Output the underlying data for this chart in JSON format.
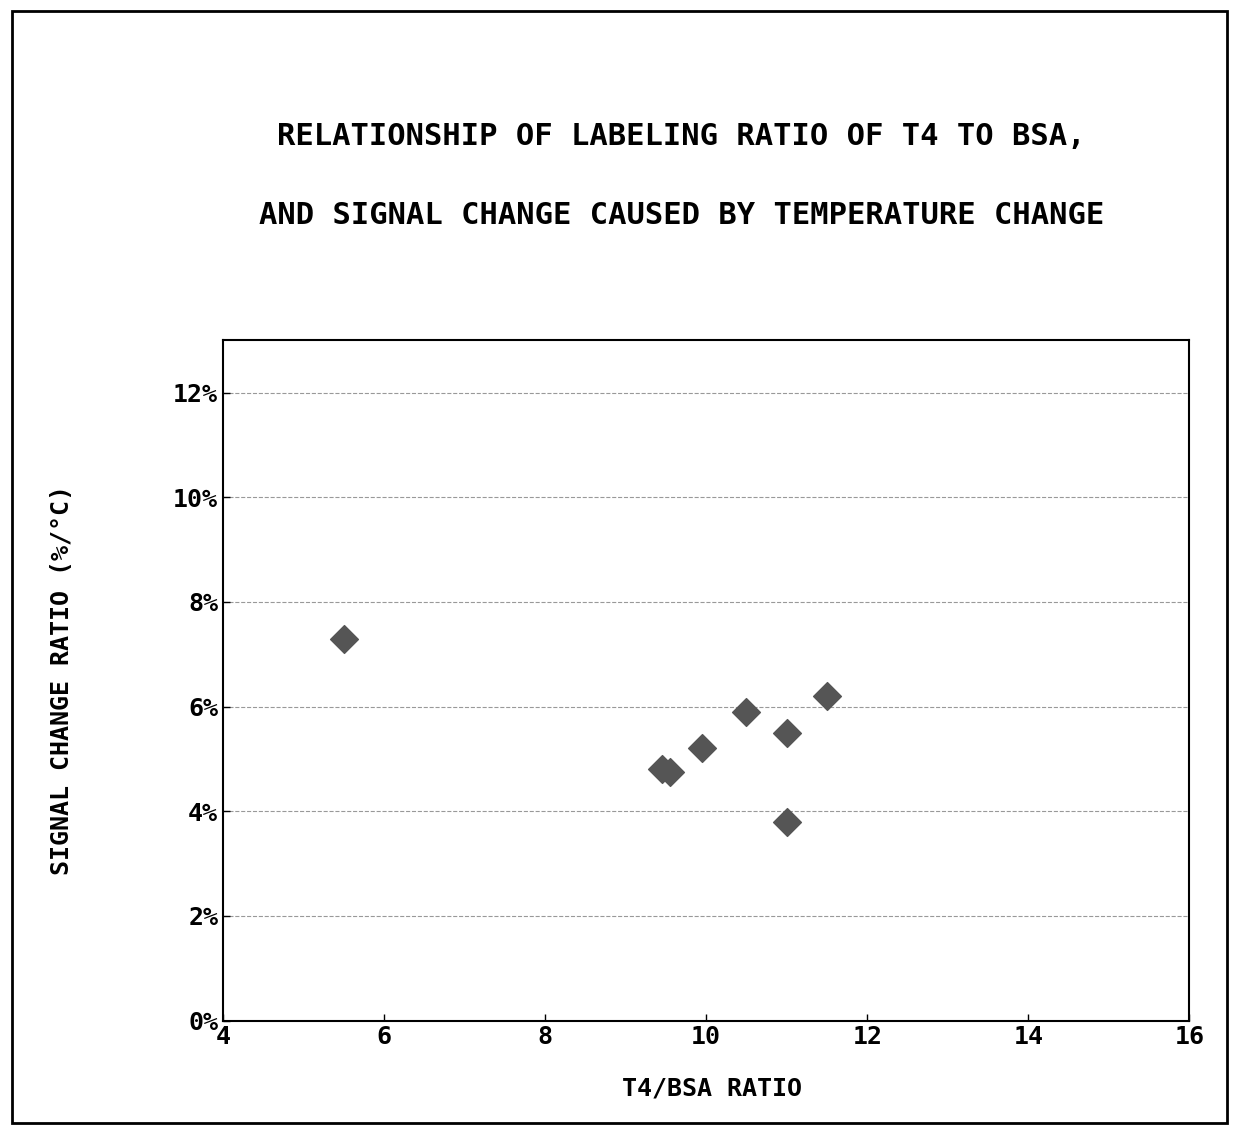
{
  "title_line1": "RELATIONSHIP OF LABELING RATIO OF T4 TO BSA,",
  "title_line2": "AND SIGNAL CHANGE CAUSED BY TEMPERATURE CHANGE",
  "xlabel": "T4/BSA RATIO",
  "ylabel": "SIGNAL CHANGE RATIO (%/°C)",
  "x_data": [
    5.5,
    9.45,
    9.55,
    9.95,
    10.5,
    11.0,
    11.0,
    11.5
  ],
  "y_data": [
    0.073,
    0.048,
    0.0475,
    0.052,
    0.059,
    0.038,
    0.055,
    0.062
  ],
  "xlim": [
    4,
    16
  ],
  "ylim": [
    0,
    0.13
  ],
  "xticks": [
    4,
    6,
    8,
    10,
    12,
    14,
    16
  ],
  "yticks": [
    0,
    0.02,
    0.04,
    0.06,
    0.08,
    0.1,
    0.12
  ],
  "ytick_labels": [
    "0%",
    "2%",
    "4%",
    "6%",
    "8%",
    "10%",
    "12%"
  ],
  "marker_color": "#555555",
  "marker_size": 200,
  "background_color": "#ffffff",
  "title_fontsize": 22,
  "label_fontsize": 18,
  "tick_fontsize": 18
}
